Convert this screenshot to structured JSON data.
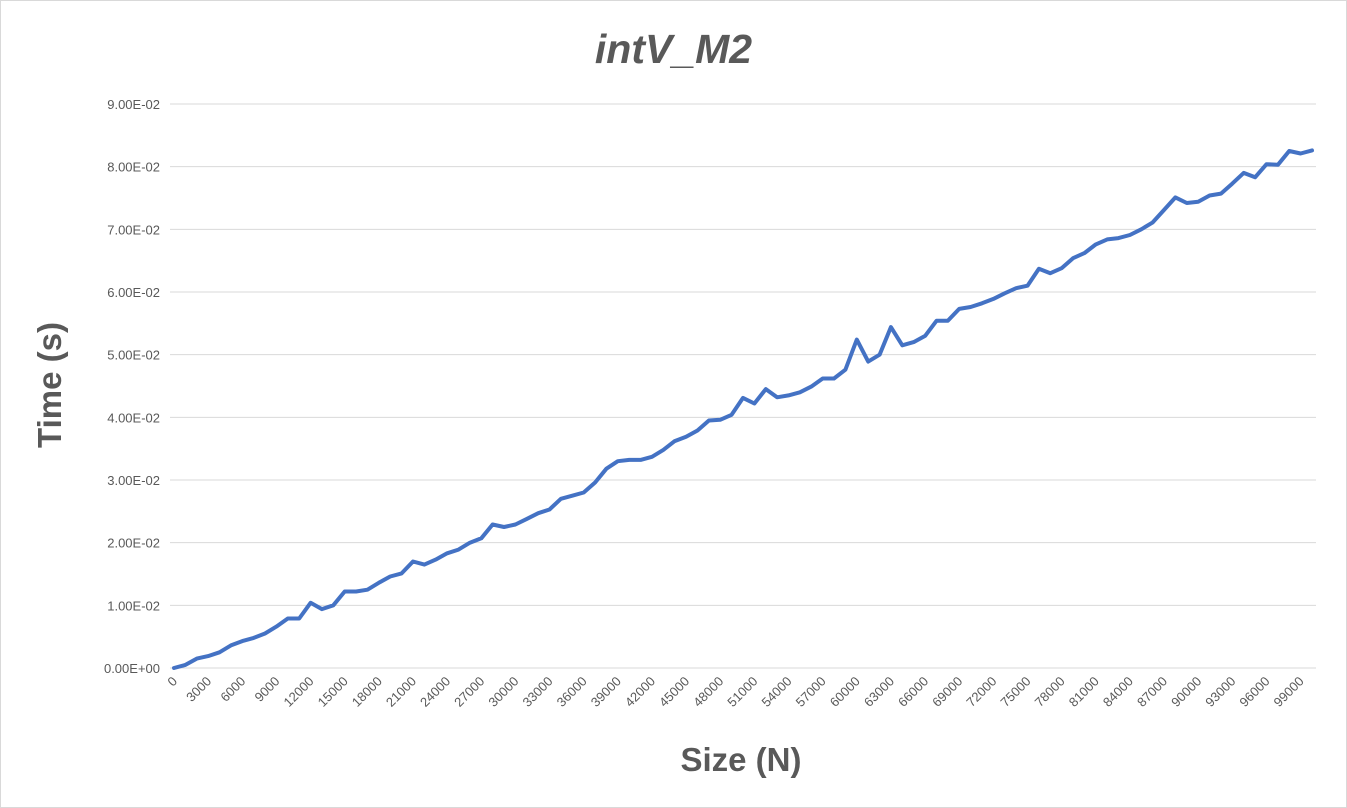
{
  "chart_data": {
    "type": "line",
    "title": "intV_M2",
    "xlabel": "Size (N)",
    "ylabel": "Time (s)",
    "ylim": [
      0,
      0.09
    ],
    "yticks": [
      "0.00E+00",
      "1.00E-02",
      "2.00E-02",
      "3.00E-02",
      "4.00E-02",
      "5.00E-02",
      "6.00E-02",
      "7.00E-02",
      "8.00E-02",
      "9.00E-02"
    ],
    "xticks_shown": [
      "0",
      "3000",
      "6000",
      "9000",
      "12000",
      "15000",
      "18000",
      "21000",
      "24000",
      "27000",
      "30000",
      "33000",
      "36000",
      "39000",
      "42000",
      "45000",
      "48000",
      "51000",
      "54000",
      "57000",
      "60000",
      "63000",
      "66000",
      "69000",
      "72000",
      "75000",
      "78000",
      "81000",
      "84000",
      "87000",
      "90000",
      "93000",
      "96000",
      "99000"
    ],
    "grid": true,
    "line_color": "#4472c4",
    "x_step": 1000,
    "values": [
      0,
      0.0005,
      0.0015,
      0.0019,
      0.0025,
      0.0036,
      0.0043,
      0.0048,
      0.0055,
      0.0066,
      0.0079,
      0.0079,
      0.0104,
      0.0094,
      0.01,
      0.0122,
      0.0122,
      0.0125,
      0.0136,
      0.0146,
      0.0151,
      0.017,
      0.0165,
      0.0173,
      0.0183,
      0.0189,
      0.02,
      0.0207,
      0.0229,
      0.0225,
      0.0229,
      0.0238,
      0.0247,
      0.0253,
      0.027,
      0.0275,
      0.028,
      0.0296,
      0.0318,
      0.033,
      0.0332,
      0.0332,
      0.0337,
      0.0348,
      0.0362,
      0.0369,
      0.0379,
      0.0395,
      0.0396,
      0.0404,
      0.0431,
      0.0422,
      0.0445,
      0.0432,
      0.0435,
      0.044,
      0.0449,
      0.0462,
      0.0462,
      0.0476,
      0.0524,
      0.0489,
      0.05,
      0.0544,
      0.0515,
      0.052,
      0.053,
      0.0554,
      0.0554,
      0.0573,
      0.0576,
      0.0582,
      0.0589,
      0.0598,
      0.0606,
      0.061,
      0.0637,
      0.063,
      0.0638,
      0.0654,
      0.0662,
      0.0676,
      0.0684,
      0.0686,
      0.0691,
      0.07,
      0.0711,
      0.0731,
      0.0751,
      0.0742,
      0.0744,
      0.0754,
      0.0757,
      0.0773,
      0.079,
      0.0783,
      0.0804,
      0.0803,
      0.0825,
      0.0821,
      0.0826
    ]
  }
}
